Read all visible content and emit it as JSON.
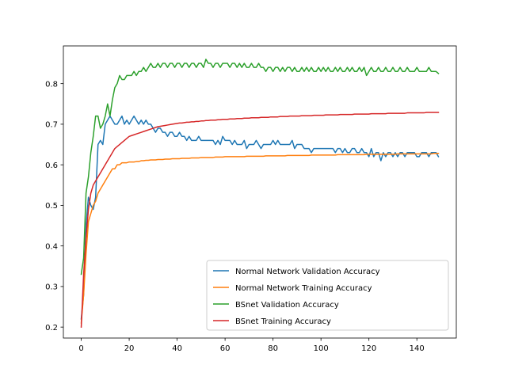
{
  "chart_data": {
    "type": "line",
    "title": "",
    "xlabel": "",
    "ylabel": "",
    "xlim": [
      -7.45,
      156.45
    ],
    "ylim": [
      0.173,
      0.893
    ],
    "xticks": [
      0,
      20,
      40,
      60,
      80,
      100,
      120,
      140
    ],
    "yticks": [
      0.2,
      0.3,
      0.4,
      0.5,
      0.6,
      0.7,
      0.8
    ],
    "ytick_labels": [
      "0.2",
      "0.3",
      "0.4",
      "0.5",
      "0.6",
      "0.7",
      "0.8"
    ],
    "grid": false,
    "legend_position": "lower-right",
    "series": [
      {
        "name": "Normal Network Validation Accuracy",
        "color": "#1f77b4",
        "values": [
          0.22,
          0.28,
          0.45,
          0.52,
          0.5,
          0.49,
          0.52,
          0.65,
          0.66,
          0.65,
          0.7,
          0.71,
          0.72,
          0.71,
          0.7,
          0.7,
          0.71,
          0.72,
          0.7,
          0.71,
          0.7,
          0.71,
          0.72,
          0.71,
          0.7,
          0.71,
          0.7,
          0.71,
          0.7,
          0.7,
          0.69,
          0.68,
          0.69,
          0.69,
          0.68,
          0.68,
          0.67,
          0.68,
          0.68,
          0.67,
          0.67,
          0.68,
          0.67,
          0.67,
          0.66,
          0.67,
          0.66,
          0.66,
          0.66,
          0.67,
          0.66,
          0.66,
          0.66,
          0.66,
          0.66,
          0.66,
          0.65,
          0.66,
          0.65,
          0.67,
          0.66,
          0.66,
          0.66,
          0.65,
          0.66,
          0.65,
          0.65,
          0.65,
          0.66,
          0.64,
          0.65,
          0.65,
          0.65,
          0.66,
          0.65,
          0.64,
          0.65,
          0.65,
          0.65,
          0.65,
          0.66,
          0.65,
          0.66,
          0.65,
          0.65,
          0.65,
          0.65,
          0.65,
          0.66,
          0.64,
          0.65,
          0.65,
          0.65,
          0.64,
          0.64,
          0.64,
          0.63,
          0.64,
          0.64,
          0.64,
          0.64,
          0.64,
          0.64,
          0.64,
          0.64,
          0.64,
          0.63,
          0.64,
          0.64,
          0.63,
          0.64,
          0.63,
          0.63,
          0.64,
          0.64,
          0.63,
          0.63,
          0.64,
          0.63,
          0.63,
          0.62,
          0.64,
          0.62,
          0.63,
          0.63,
          0.61,
          0.63,
          0.62,
          0.63,
          0.63,
          0.62,
          0.63,
          0.62,
          0.63,
          0.63,
          0.62,
          0.63,
          0.63,
          0.63,
          0.63,
          0.62,
          0.62,
          0.63,
          0.63,
          0.63,
          0.62,
          0.63,
          0.63,
          0.63,
          0.62
        ]
      },
      {
        "name": "Normal Network Training Accuracy",
        "color": "#ff7f0e",
        "values": [
          0.21,
          0.28,
          0.38,
          0.46,
          0.48,
          0.5,
          0.51,
          0.53,
          0.54,
          0.55,
          0.56,
          0.57,
          0.58,
          0.59,
          0.59,
          0.6,
          0.6,
          0.605,
          0.605,
          0.605,
          0.607,
          0.607,
          0.607,
          0.608,
          0.608,
          0.61,
          0.61,
          0.611,
          0.611,
          0.612,
          0.612,
          0.612,
          0.613,
          0.613,
          0.613,
          0.614,
          0.614,
          0.614,
          0.615,
          0.615,
          0.615,
          0.615,
          0.616,
          0.616,
          0.616,
          0.616,
          0.617,
          0.617,
          0.617,
          0.617,
          0.618,
          0.618,
          0.618,
          0.618,
          0.618,
          0.618,
          0.619,
          0.619,
          0.619,
          0.619,
          0.62,
          0.62,
          0.62,
          0.62,
          0.62,
          0.62,
          0.62,
          0.62,
          0.62,
          0.621,
          0.621,
          0.621,
          0.621,
          0.621,
          0.621,
          0.621,
          0.621,
          0.622,
          0.622,
          0.622,
          0.622,
          0.622,
          0.622,
          0.622,
          0.622,
          0.622,
          0.623,
          0.623,
          0.623,
          0.623,
          0.623,
          0.623,
          0.623,
          0.623,
          0.623,
          0.623,
          0.624,
          0.624,
          0.624,
          0.624,
          0.624,
          0.624,
          0.624,
          0.624,
          0.624,
          0.624,
          0.624,
          0.625,
          0.625,
          0.625,
          0.625,
          0.625,
          0.625,
          0.625,
          0.625,
          0.625,
          0.625,
          0.625,
          0.625,
          0.626,
          0.626,
          0.626,
          0.626,
          0.626,
          0.626,
          0.626,
          0.626,
          0.626,
          0.626,
          0.626,
          0.626,
          0.626,
          0.627,
          0.627,
          0.627,
          0.627,
          0.627,
          0.627,
          0.627,
          0.627,
          0.627,
          0.627,
          0.627,
          0.627,
          0.627,
          0.627,
          0.627,
          0.628,
          0.628,
          0.628
        ]
      },
      {
        "name": "BSnet Validation Accuracy",
        "color": "#2ca02c",
        "values": [
          0.33,
          0.37,
          0.53,
          0.57,
          0.63,
          0.67,
          0.72,
          0.72,
          0.69,
          0.7,
          0.72,
          0.75,
          0.72,
          0.76,
          0.79,
          0.8,
          0.82,
          0.81,
          0.81,
          0.82,
          0.82,
          0.82,
          0.83,
          0.82,
          0.83,
          0.83,
          0.84,
          0.83,
          0.84,
          0.85,
          0.84,
          0.84,
          0.85,
          0.84,
          0.85,
          0.85,
          0.84,
          0.85,
          0.85,
          0.84,
          0.85,
          0.85,
          0.84,
          0.85,
          0.85,
          0.84,
          0.85,
          0.85,
          0.84,
          0.85,
          0.85,
          0.84,
          0.86,
          0.85,
          0.85,
          0.84,
          0.85,
          0.85,
          0.84,
          0.85,
          0.85,
          0.85,
          0.84,
          0.85,
          0.85,
          0.84,
          0.85,
          0.84,
          0.85,
          0.84,
          0.84,
          0.85,
          0.84,
          0.84,
          0.85,
          0.84,
          0.84,
          0.83,
          0.84,
          0.84,
          0.83,
          0.84,
          0.84,
          0.83,
          0.84,
          0.83,
          0.84,
          0.84,
          0.83,
          0.84,
          0.83,
          0.83,
          0.84,
          0.83,
          0.84,
          0.83,
          0.84,
          0.83,
          0.83,
          0.84,
          0.83,
          0.84,
          0.83,
          0.84,
          0.83,
          0.83,
          0.84,
          0.83,
          0.84,
          0.83,
          0.83,
          0.84,
          0.83,
          0.84,
          0.83,
          0.83,
          0.84,
          0.83,
          0.84,
          0.82,
          0.83,
          0.84,
          0.83,
          0.83,
          0.84,
          0.83,
          0.83,
          0.84,
          0.83,
          0.83,
          0.84,
          0.83,
          0.83,
          0.84,
          0.83,
          0.83,
          0.84,
          0.83,
          0.83,
          0.83,
          0.84,
          0.83,
          0.83,
          0.83,
          0.83,
          0.84,
          0.83,
          0.83,
          0.83,
          0.825
        ]
      },
      {
        "name": "BSnet Training Accuracy",
        "color": "#d62728",
        "values": [
          0.2,
          0.33,
          0.42,
          0.49,
          0.53,
          0.55,
          0.56,
          0.57,
          0.58,
          0.59,
          0.6,
          0.61,
          0.62,
          0.63,
          0.64,
          0.645,
          0.65,
          0.655,
          0.66,
          0.665,
          0.67,
          0.672,
          0.674,
          0.676,
          0.678,
          0.68,
          0.682,
          0.684,
          0.686,
          0.688,
          0.69,
          0.692,
          0.694,
          0.695,
          0.696,
          0.697,
          0.698,
          0.699,
          0.7,
          0.701,
          0.702,
          0.703,
          0.703,
          0.704,
          0.705,
          0.705,
          0.706,
          0.706,
          0.707,
          0.707,
          0.708,
          0.708,
          0.709,
          0.709,
          0.71,
          0.71,
          0.71,
          0.711,
          0.711,
          0.712,
          0.712,
          0.712,
          0.713,
          0.713,
          0.713,
          0.714,
          0.714,
          0.714,
          0.715,
          0.715,
          0.715,
          0.716,
          0.716,
          0.716,
          0.716,
          0.717,
          0.717,
          0.717,
          0.717,
          0.718,
          0.718,
          0.718,
          0.718,
          0.719,
          0.719,
          0.719,
          0.719,
          0.72,
          0.72,
          0.72,
          0.72,
          0.72,
          0.721,
          0.721,
          0.721,
          0.721,
          0.721,
          0.722,
          0.722,
          0.722,
          0.722,
          0.722,
          0.723,
          0.723,
          0.723,
          0.723,
          0.723,
          0.723,
          0.724,
          0.724,
          0.724,
          0.724,
          0.724,
          0.724,
          0.725,
          0.725,
          0.725,
          0.725,
          0.725,
          0.725,
          0.725,
          0.726,
          0.726,
          0.726,
          0.726,
          0.726,
          0.726,
          0.726,
          0.727,
          0.727,
          0.727,
          0.727,
          0.727,
          0.727,
          0.727,
          0.727,
          0.728,
          0.728,
          0.728,
          0.728,
          0.728,
          0.728,
          0.728,
          0.728,
          0.729,
          0.729,
          0.729,
          0.729,
          0.729,
          0.729
        ]
      }
    ]
  }
}
